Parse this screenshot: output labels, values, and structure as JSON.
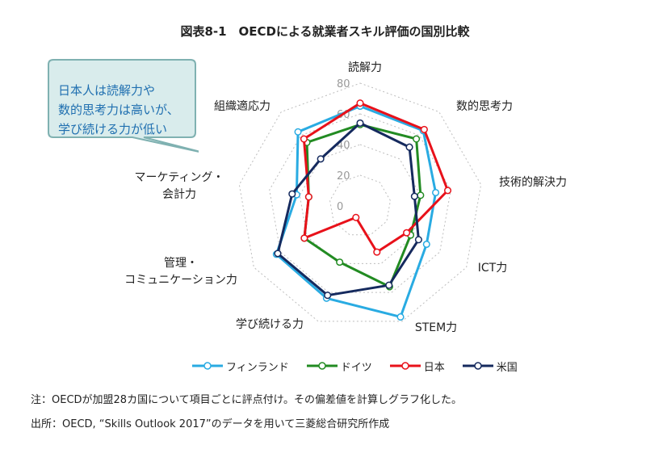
{
  "chart_data": {
    "type": "radar",
    "title": "図表8-1　OECDによる就業者スキル評価の国別比較",
    "axes": [
      "読解力",
      "数的思考力",
      "技術的解決力",
      "ICT力",
      "STEM力",
      "学び続ける力",
      "管理・\nコミュニケーション力",
      "マーケティング・\n会計力",
      "組織適応力"
    ],
    "rlim": [
      0,
      80
    ],
    "ticks": [
      0,
      20,
      40,
      60,
      80
    ],
    "grid": true,
    "legend_position": "bottom",
    "series": [
      {
        "name": "フィンランド",
        "color": "#29abe2",
        "values": [
          65,
          64,
          50,
          50,
          77,
          64,
          63,
          42,
          63
        ]
      },
      {
        "name": "ドイツ",
        "color": "#228b22",
        "values": [
          53,
          57,
          40,
          38,
          56,
          39,
          42,
          34,
          54
        ]
      },
      {
        "name": "日本",
        "color": "#e8111a",
        "values": [
          67,
          65,
          58,
          35,
          32,
          8,
          42,
          34,
          57
        ]
      },
      {
        "name": "米国",
        "color": "#152a5e",
        "values": [
          54,
          50,
          36,
          44,
          55,
          62,
          62,
          45,
          40
        ]
      }
    ]
  },
  "callout": {
    "text_lines": [
      "日本人は読解力や",
      "数的思考力は高いが、",
      "学び続ける力が低い"
    ]
  },
  "notes": {
    "note": "注：OECDが加盟28カ国について項目ごとに評点付け。その偏差値を計算しグラフ化した。",
    "source": "出所：OECD, “Skills Outlook 2017”のデータを用いて三菱総合研究所作成"
  }
}
